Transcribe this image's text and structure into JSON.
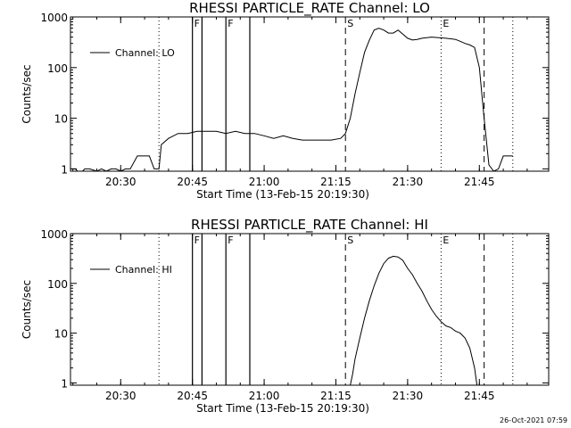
{
  "footer": {
    "timestamp": "26-Oct-2021 07:59"
  },
  "chart_data": [
    {
      "type": "line",
      "title": "RHESSI PARTICLE_RATE Channel: LO",
      "xlabel": "Start Time (13-Feb-15 20:19:30)",
      "ylabel": "Counts/sec",
      "yscale": "log",
      "ylim": [
        0.9,
        1000
      ],
      "xlim_minutes_after_start": [
        0,
        100
      ],
      "x_tick_labels": [
        "20:30",
        "20:45",
        "21:00",
        "21:15",
        "21:30",
        "21:45"
      ],
      "y_tick_labels": [
        "1",
        "10",
        "100",
        "1000"
      ],
      "legend": "Channel: LO",
      "legend_position": "top-left",
      "markers": {
        "solid": [
          "20:45",
          "20:47",
          "20:52",
          "20:57"
        ],
        "dashed": [
          "21:17",
          "21:46"
        ],
        "dotted": [
          "20:38",
          "21:37",
          "21:52"
        ],
        "labels": [
          "F",
          "F",
          "S",
          "E"
        ]
      },
      "series": [
        {
          "x": [
            "20:19:30",
            "20:20:30",
            "20:21:00",
            "20:22:00",
            "20:22:30",
            "20:23:30",
            "20:25:00",
            "20:26:00",
            "20:27:00",
            "20:28:00",
            "20:29:00",
            "20:30:00",
            "20:31:00",
            "20:32:00",
            "20:33:30",
            "20:35:00",
            "20:36:00",
            "20:37:00",
            "20:38:00",
            "20:38:30",
            "20:40:00",
            "20:42:00",
            "20:44:00",
            "20:46:00",
            "20:48:00",
            "20:50:00",
            "20:52:00",
            "20:54:00",
            "20:56:00",
            "20:58:00",
            "21:00:00",
            "21:02:00",
            "21:04:00",
            "21:06:00",
            "21:08:00",
            "21:10:00",
            "21:12:00",
            "21:14:00",
            "21:16:00",
            "21:17:00",
            "21:18:00",
            "21:19:00",
            "21:20:00",
            "21:21:00",
            "21:22:00",
            "21:23:00",
            "21:24:00",
            "21:25:00",
            "21:26:00",
            "21:27:00",
            "21:28:00",
            "21:30:00",
            "21:31:00",
            "21:32:00",
            "21:33:00",
            "21:35:00",
            "21:38:00",
            "21:40:00",
            "21:41:00",
            "21:42:00",
            "21:43:00",
            "21:44:00",
            "21:45:00",
            "21:46:00",
            "21:47:00",
            "21:48:00",
            "21:49:00",
            "21:50:00",
            "21:51:00",
            "21:52:00"
          ],
          "y": [
            1,
            1,
            0.9,
            0.9,
            1,
            1,
            0.9,
            1,
            0.9,
            1,
            1,
            0.9,
            1,
            1,
            1.8,
            1.8,
            1.8,
            1,
            1,
            3,
            4,
            5,
            5,
            5.5,
            5.5,
            5.5,
            5,
            5.5,
            5,
            5,
            4.5,
            4,
            4.5,
            4,
            3.7,
            3.7,
            3.7,
            3.7,
            4,
            5,
            10,
            30,
            80,
            200,
            350,
            550,
            600,
            550,
            480,
            480,
            550,
            380,
            350,
            360,
            380,
            400,
            380,
            360,
            330,
            300,
            280,
            250,
            100,
            10,
            1.2,
            0.9,
            1,
            1.8,
            1.8,
            1.8
          ]
        }
      ]
    },
    {
      "type": "line",
      "title": "RHESSI PARTICLE_RATE Channel: HI",
      "xlabel": "Start Time (13-Feb-15 20:19:30)",
      "ylabel": "Counts/sec",
      "yscale": "log",
      "ylim": [
        0.9,
        1000
      ],
      "xlim_minutes_after_start": [
        0,
        100
      ],
      "x_tick_labels": [
        "20:30",
        "20:45",
        "21:00",
        "21:15",
        "21:30",
        "21:45"
      ],
      "y_tick_labels": [
        "1",
        "10",
        "100",
        "1000"
      ],
      "legend": "Channel: HI",
      "legend_position": "top-left",
      "markers": {
        "solid": [
          "20:45",
          "20:47",
          "20:52",
          "20:57"
        ],
        "dashed": [
          "21:17",
          "21:46"
        ],
        "dotted": [
          "20:38",
          "21:37",
          "21:52"
        ],
        "labels": [
          "F",
          "F",
          "S",
          "E"
        ]
      },
      "series": [
        {
          "x": [
            "21:18:00",
            "21:18:30",
            "21:19:00",
            "21:20:00",
            "21:21:00",
            "21:22:00",
            "21:23:00",
            "21:24:00",
            "21:25:00",
            "21:26:00",
            "21:27:00",
            "21:28:00",
            "21:29:00",
            "21:30:00",
            "21:31:00",
            "21:32:00",
            "21:33:00",
            "21:34:00",
            "21:35:00",
            "21:36:00",
            "21:37:00",
            "21:38:00",
            "21:39:00",
            "21:40:00",
            "21:41:00",
            "21:42:00",
            "21:43:00",
            "21:44:00",
            "21:44:30"
          ],
          "y": [
            0.9,
            1.5,
            3,
            8,
            20,
            45,
            90,
            160,
            250,
            320,
            350,
            340,
            290,
            200,
            150,
            100,
            70,
            45,
            30,
            22,
            17,
            14,
            13,
            11,
            10,
            8,
            5,
            2,
            0.9
          ]
        }
      ]
    }
  ]
}
